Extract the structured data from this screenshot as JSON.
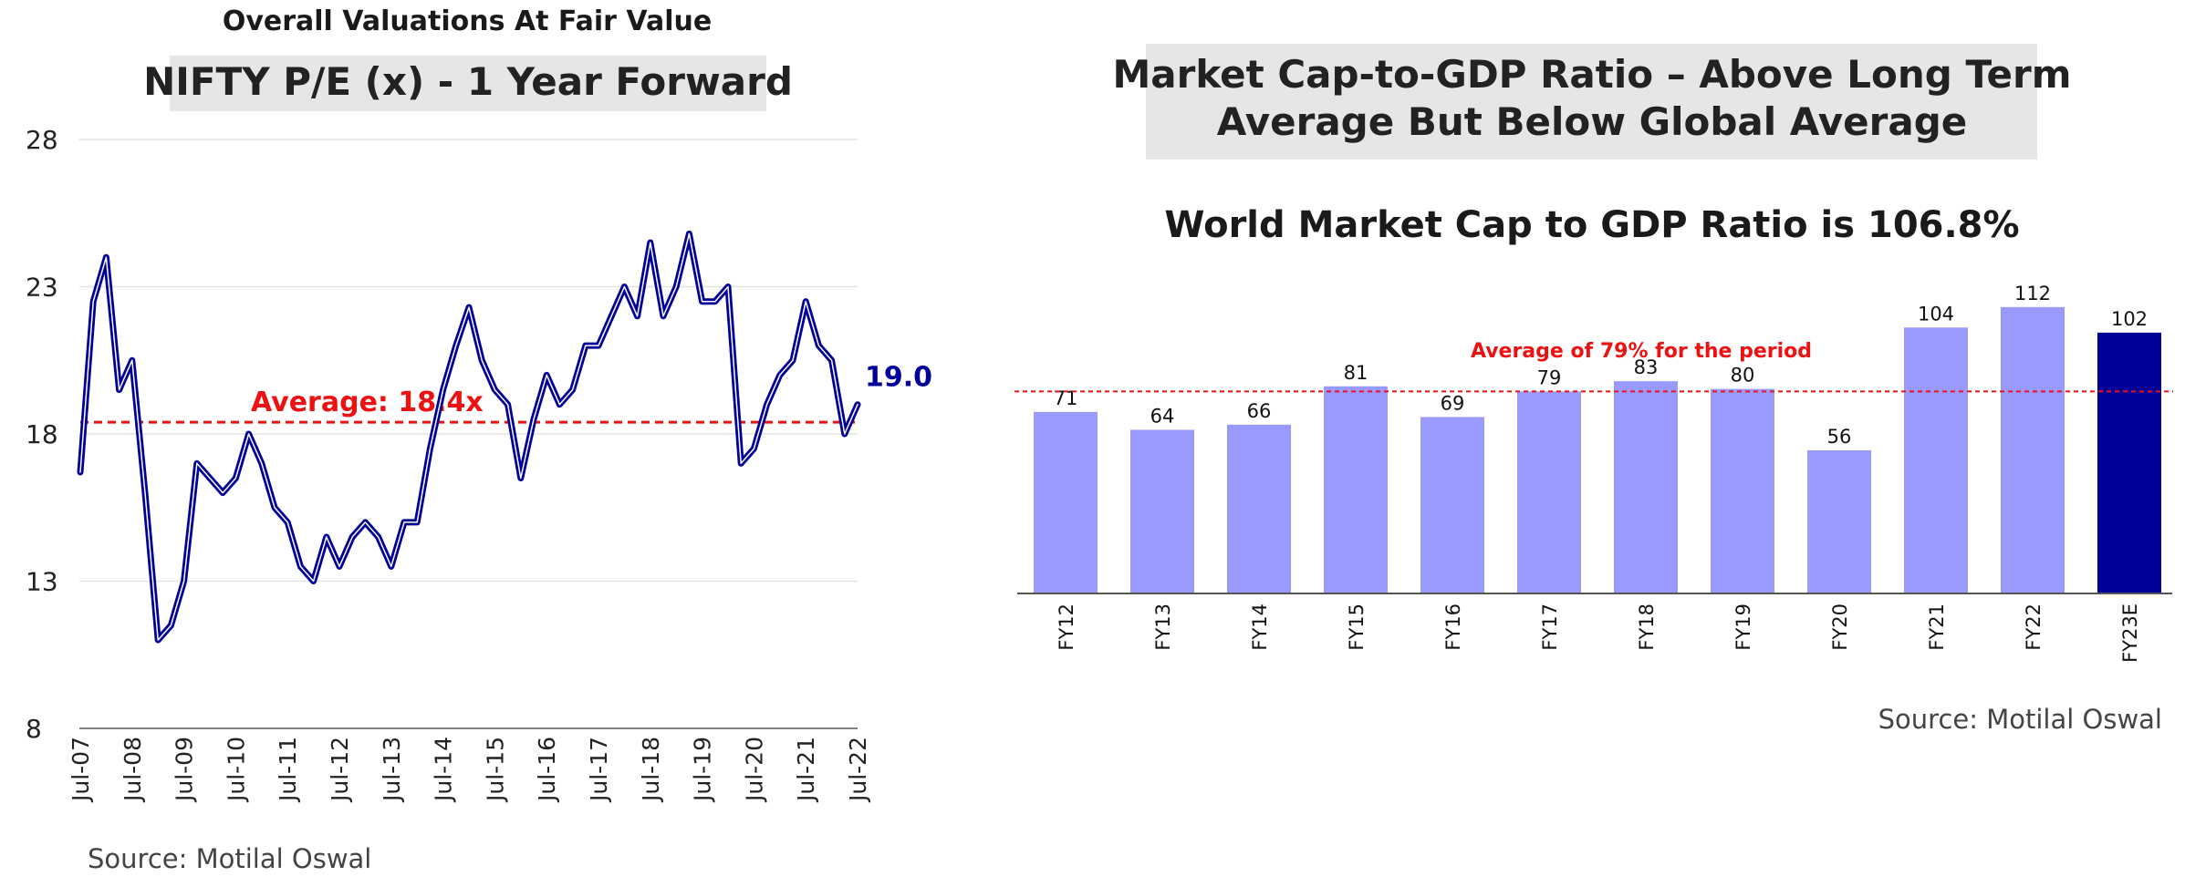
{
  "chart_data": [
    {
      "type": "line",
      "suptitle": "Overall Valuations At Fair Value",
      "title": "NIFTY P/E (x) - 1 Year Forward",
      "x": [
        "Jul-07",
        "Oct-07",
        "Jan-08",
        "Apr-08",
        "Jul-08",
        "Oct-08",
        "Jan-09",
        "Apr-09",
        "Jul-09",
        "Oct-09",
        "Jan-10",
        "Apr-10",
        "Jul-10",
        "Oct-10",
        "Jan-11",
        "Apr-11",
        "Jul-11",
        "Oct-11",
        "Jan-12",
        "Apr-12",
        "Jul-12",
        "Oct-12",
        "Jan-13",
        "Apr-13",
        "Jul-13",
        "Oct-13",
        "Jan-14",
        "Apr-14",
        "Jul-14",
        "Oct-14",
        "Jan-15",
        "Apr-15",
        "Jul-15",
        "Oct-15",
        "Jan-16",
        "Apr-16",
        "Jul-16",
        "Oct-16",
        "Jan-17",
        "Apr-17",
        "Jul-17",
        "Oct-17",
        "Jan-18",
        "Apr-18",
        "Jul-18",
        "Oct-18",
        "Jan-19",
        "Apr-19",
        "Jul-19",
        "Oct-19",
        "Jan-20",
        "Apr-20",
        "Jul-20",
        "Oct-20",
        "Jan-21",
        "Apr-21",
        "Jul-21",
        "Oct-21",
        "Jan-22",
        "Apr-22",
        "Jul-22"
      ],
      "series": [
        {
          "values": [
            16.7,
            22.5,
            24.0,
            19.5,
            20.5,
            16.0,
            11.0,
            11.5,
            13.0,
            17.0,
            16.5,
            16.0,
            16.5,
            18.0,
            17.0,
            15.5,
            15.0,
            13.5,
            13.0,
            14.5,
            13.5,
            14.5,
            15.0,
            14.5,
            13.5,
            15.0,
            15.0,
            17.5,
            19.5,
            21.0,
            22.3,
            20.5,
            19.5,
            19.0,
            16.5,
            18.5,
            20.0,
            19.0,
            19.5,
            21.0,
            21.0,
            22.0,
            23.0,
            22.0,
            24.5,
            22.0,
            23.0,
            24.8,
            22.5,
            22.5,
            23.0,
            17.0,
            17.5,
            19.0,
            20.0,
            20.5,
            22.5,
            21.0,
            20.5,
            18.0,
            19.0
          ]
        }
      ],
      "end_label": "19.0",
      "average": 18.4,
      "average_label": "Average: 18.4x",
      "ylim": [
        8,
        28
      ],
      "yticks": [
        "28",
        "23",
        "18",
        "13",
        "8"
      ],
      "xticks": [
        "Jul-07",
        "Jul-08",
        "Jul-09",
        "Jul-10",
        "Jul-11",
        "Jul-12",
        "Jul-13",
        "Jul-14",
        "Jul-15",
        "Jul-16",
        "Jul-17",
        "Jul-18",
        "Jul-19",
        "Jul-20",
        "Jul-21",
        "Jul-22"
      ],
      "line_color": "#000099",
      "average_color": "#ee1111",
      "grid": true,
      "source": "Source: Motilal Oswal"
    },
    {
      "type": "bar",
      "title": "Market Cap-to-GDP Ratio – Above Long Term Average But Below Global Average",
      "title_lines": [
        "Market Cap-to-GDP Ratio – Above Long Term",
        "Average But Below Global Average"
      ],
      "subtitle": "World Market Cap to GDP Ratio is 106.8%",
      "categories": [
        "FY12",
        "FY13",
        "FY14",
        "FY15",
        "FY16",
        "FY17",
        "FY18",
        "FY19",
        "FY20",
        "FY21",
        "FY22",
        "FY23E"
      ],
      "values": [
        71,
        64,
        66,
        81,
        69,
        79,
        83,
        80,
        56,
        104,
        112,
        102
      ],
      "average": 79,
      "average_label": "Average of 79% for the period",
      "bar_color": "#9999ff",
      "highlight_color": "#000099",
      "highlight_index": 11,
      "average_color": "#ee1111",
      "source": "Source: Motilal Oswal"
    }
  ]
}
